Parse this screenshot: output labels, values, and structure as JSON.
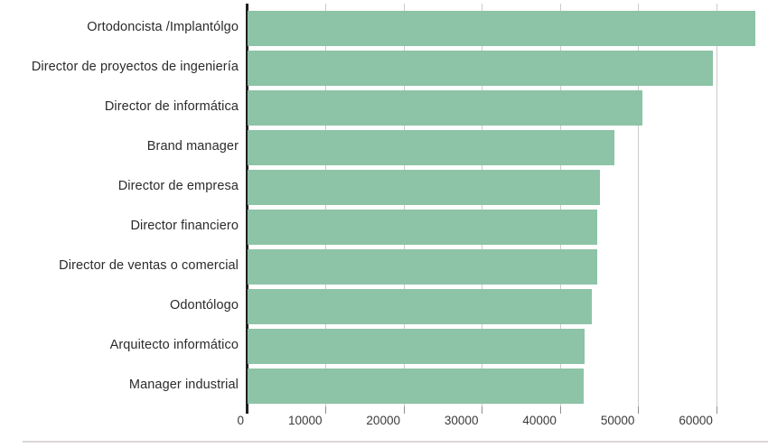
{
  "chart_data": {
    "type": "bar",
    "orientation": "horizontal",
    "title": "",
    "xlabel": "",
    "ylabel": "",
    "categories": [
      "Ortodoncista /Implantólgo",
      "Director de proyectos de ingeniería",
      "Director de informática",
      "Brand manager",
      "Director de empresa",
      "Director financiero",
      "Director de ventas o comercial",
      "Odontólogo",
      "Arquitecto informático",
      "Manager industrial"
    ],
    "values": [
      65000,
      59600,
      50500,
      47000,
      45100,
      44800,
      44700,
      44000,
      43100,
      43000
    ],
    "x_ticks": [
      0,
      10000,
      20000,
      30000,
      40000,
      50000,
      60000
    ],
    "xlim": [
      0,
      66600
    ],
    "grid": true,
    "legend": "none",
    "bar_color": "#8dc3a6",
    "gridline_color": "#cbcbcb",
    "axis_line_color": "#1f1f1f",
    "label_color": "#2b2b2b",
    "tick_label_color": "#3a3a3a"
  }
}
